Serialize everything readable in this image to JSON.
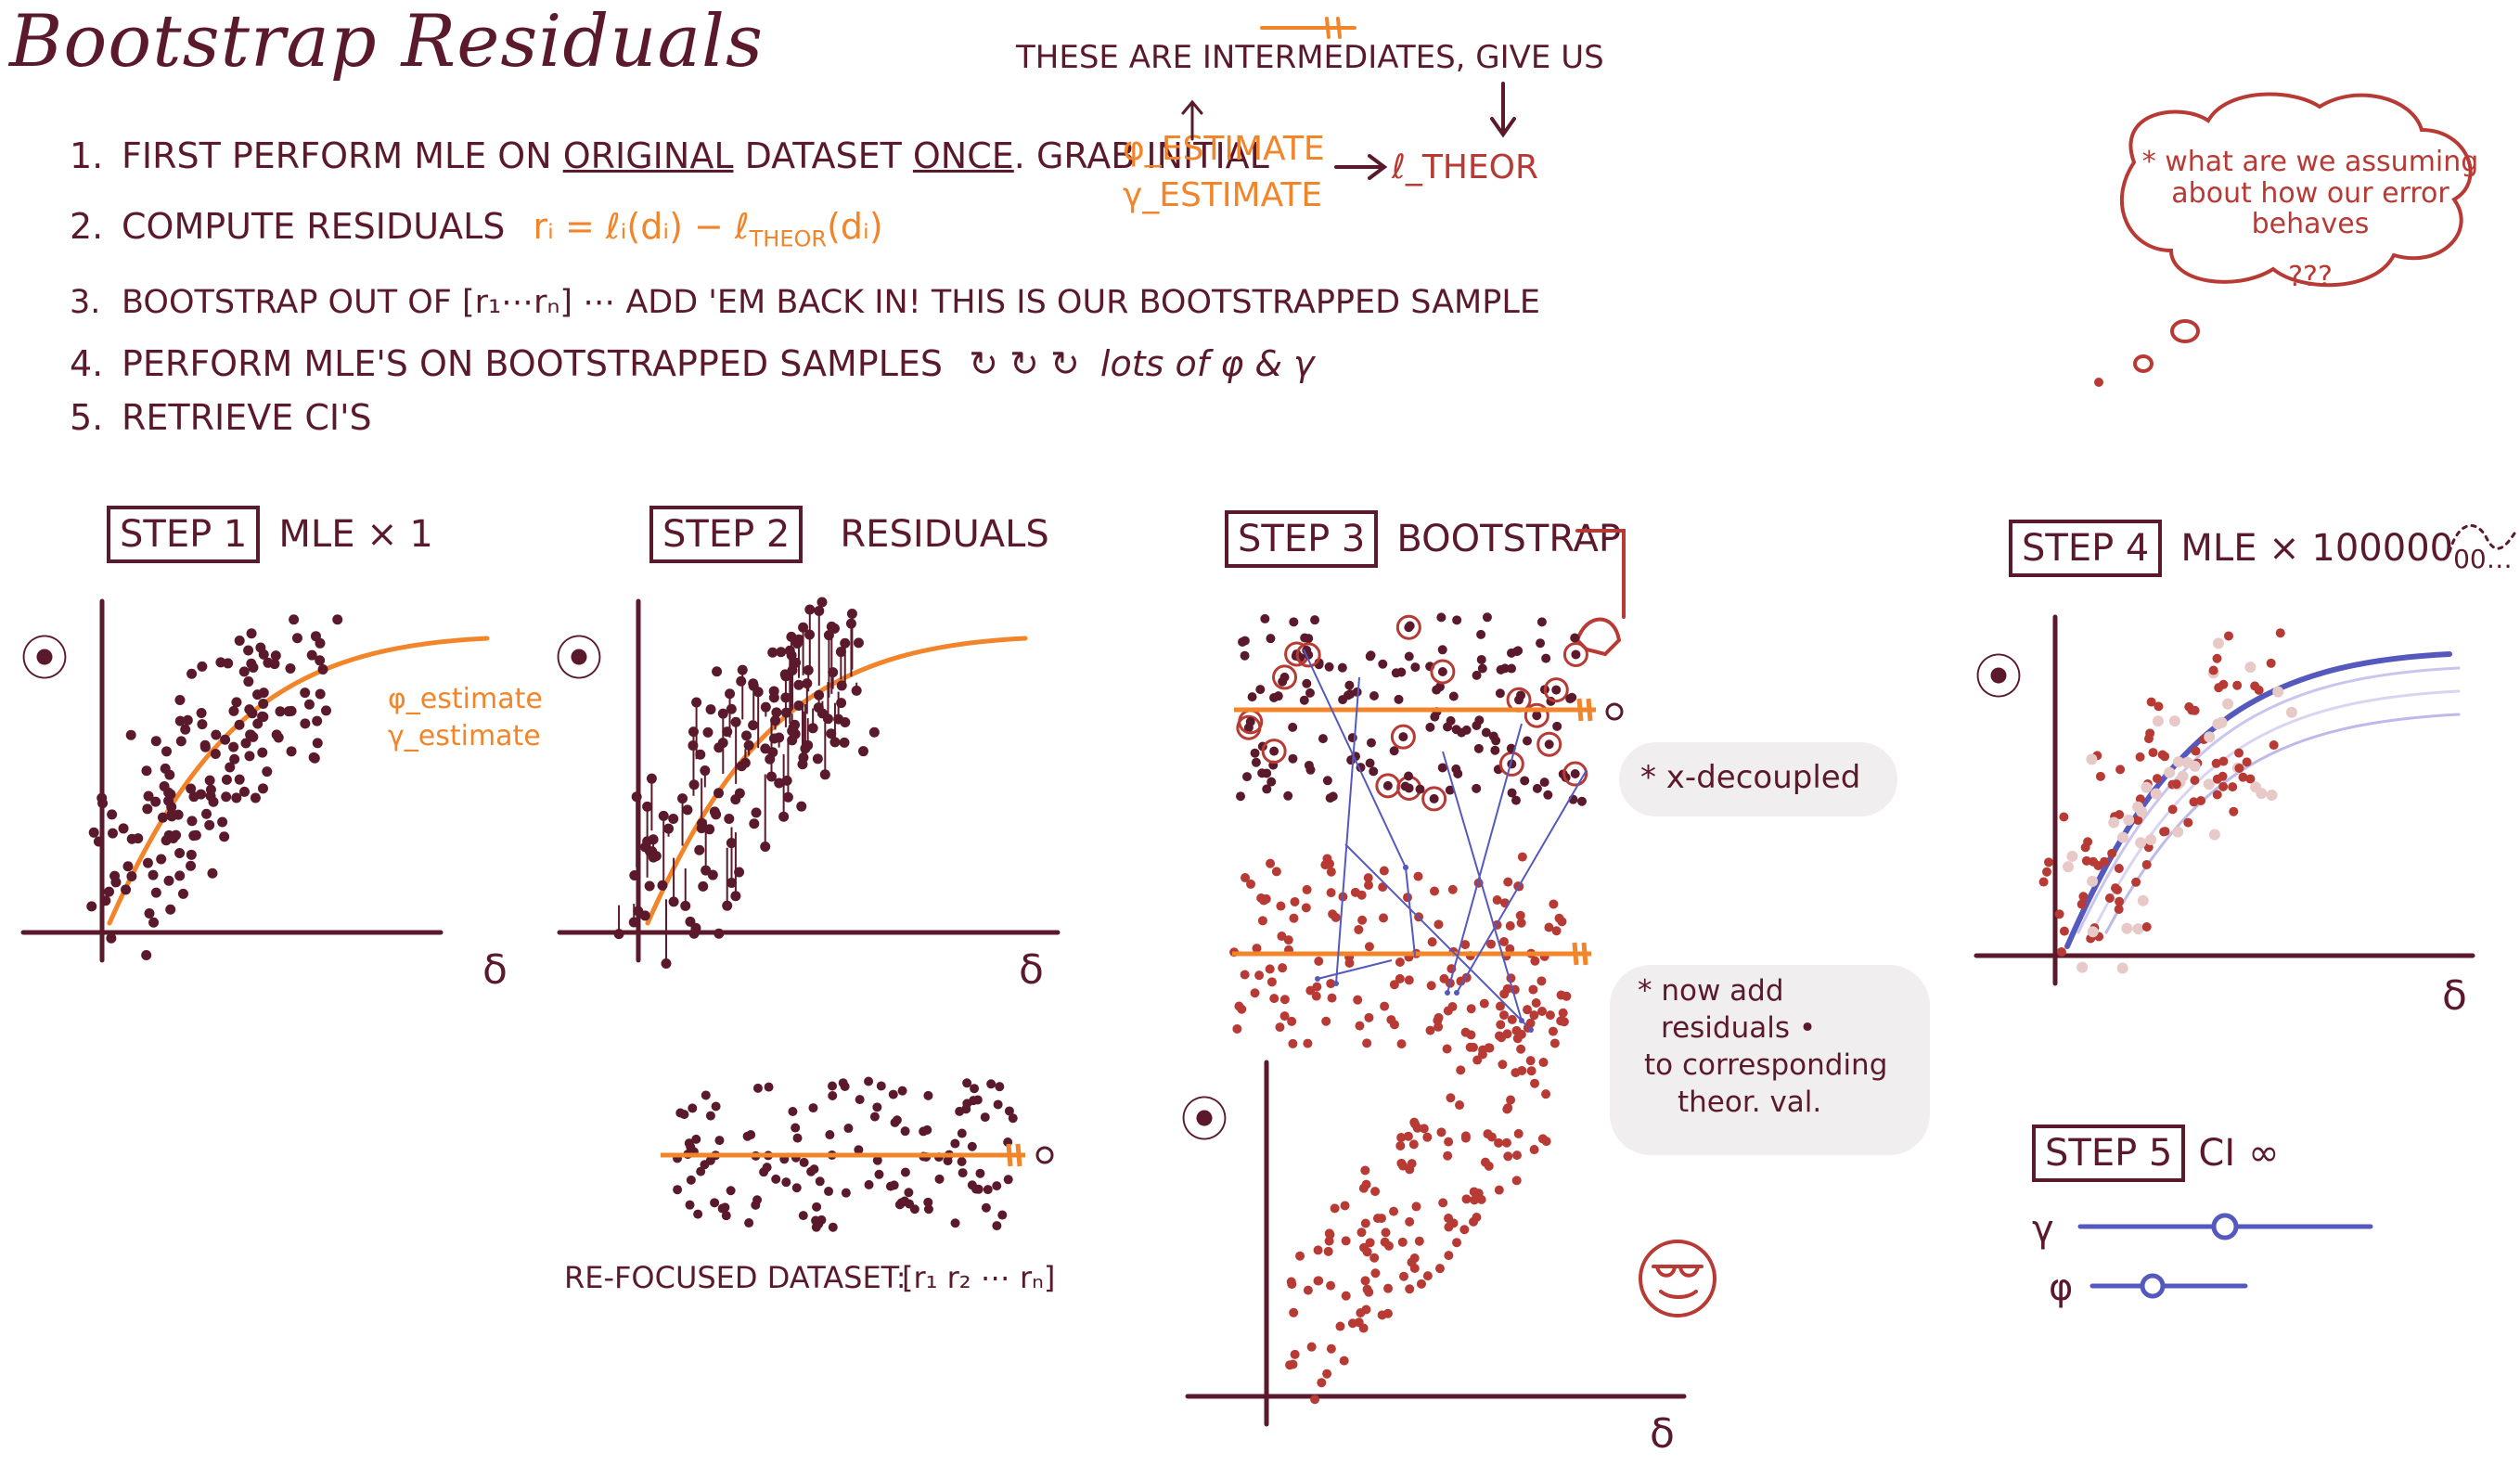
{
  "title": "Bootstrap Residuals",
  "steps": [
    {
      "num": "1.",
      "text_a": "FIRST PERFORM MLE ON ",
      "original": "ORIGINAL",
      "text_b": " DATASET ",
      "once": "ONCE",
      "text_c": ". GRAB INITIAL"
    },
    {
      "num": "2.",
      "text": "COMPUTE RESIDUALS",
      "formula": "rᵢ = ℓᵢ(dᵢ) − ℓ",
      "formula_sub": "THEOR",
      "formula_end": "(dᵢ)"
    },
    {
      "num": "3.",
      "text": "BOOTSTRAP OUT OF  [r₁⋯rₙ]  ⋯ ADD 'EM BACK IN! THIS IS OUR BOOTSTRAPPED SAMPLE"
    },
    {
      "num": "4.",
      "text": "PERFORM MLE'S ON BOOTSTRAPPED SAMPLES",
      "loops": "↻ ↻ ↻",
      "tail": "lots of φ & γ"
    },
    {
      "num": "5.",
      "text": "RETRIEVE CI'S"
    }
  ],
  "intermediates": {
    "label": "THESE ARE INTERMEDIATES, GIVE US",
    "phi": "φ_ESTIMATE",
    "gamma": "γ_ESTIMATE",
    "result": "ℓ_THEOR"
  },
  "thought_bubble": {
    "text": "* what are we assuming about how our error behaves",
    "q": "???"
  },
  "panels": {
    "step1": {
      "box": "STEP 1",
      "caption": "MLE × 1",
      "legend_phi": "φ_estimate",
      "legend_gamma": "γ_estimate",
      "ylabel": "⦿",
      "xlabel": "δ"
    },
    "step2": {
      "box": "STEP 2",
      "caption": "RESIDUALS",
      "ylabel": "⦿",
      "xlabel": "δ",
      "refocused": "RE-FOCUSED DATASET:",
      "refocused_vec": "[r₁ r₂ ⋯   rₙ]"
    },
    "step3": {
      "box": "STEP 3",
      "caption": "BOOTSTRAP",
      "decoupled": "* x-decoupled",
      "now_add_1": "* now add",
      "now_add_2": "residuals •",
      "now_add_3": "to corresponding",
      "now_add_4": "theor. val.",
      "ylabel": "⦿",
      "xlabel": "δ"
    },
    "step4": {
      "box": "STEP 4",
      "caption": "MLE × 100000",
      "tail": "00…",
      "ylabel": "⦿",
      "xlabel": "δ"
    },
    "step5": {
      "box": "STEP 5",
      "caption": "CI",
      "glyph": "∞",
      "gamma_label": "γ",
      "phi_label": "φ"
    }
  },
  "colors": {
    "ink": "#5a1a2c",
    "orange": "#f2852a",
    "red": "#b73a34",
    "blue": "#5559bd"
  }
}
